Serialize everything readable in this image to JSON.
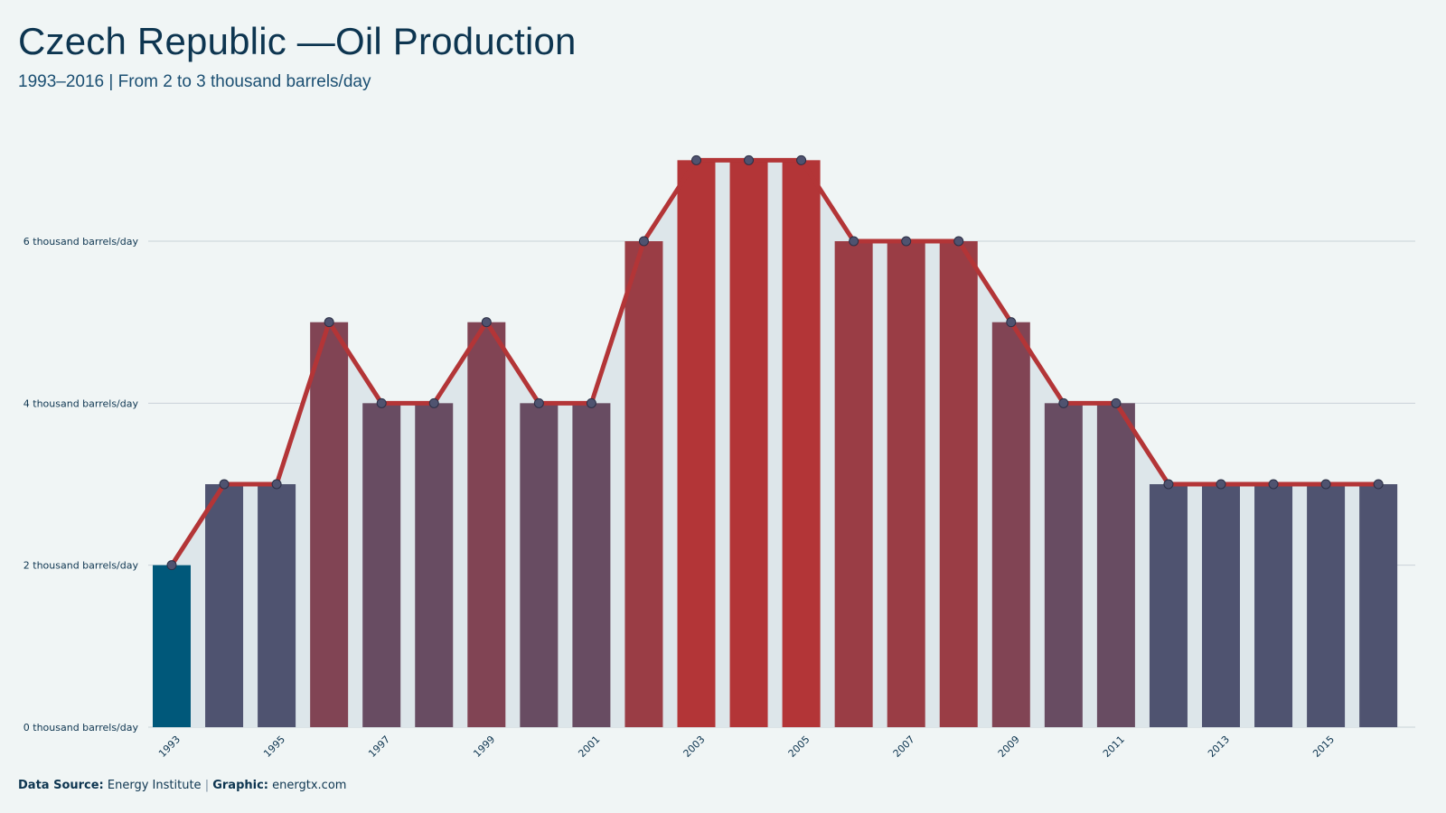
{
  "header": {
    "title": "Czech Republic —Oil Production",
    "subtitle": "1993–2016 | From 2 to 3 thousand barrels/day"
  },
  "footer": {
    "source_label": "Data Source:",
    "source_value": "Energy Institute",
    "separator": "|",
    "graphic_label": "Graphic:",
    "graphic_value": "energtx.com"
  },
  "colors": {
    "low": "#00587a",
    "mid": "#4f5370",
    "high": "#b33537",
    "line": "#b33537",
    "area": "#dde6ea",
    "marker": "#4f5370",
    "grid": "#c9d2d8"
  },
  "chart_data": {
    "type": "bar",
    "x": [
      1993,
      1994,
      1995,
      1996,
      1997,
      1998,
      1999,
      2000,
      2001,
      2002,
      2003,
      2004,
      2005,
      2006,
      2007,
      2008,
      2009,
      2010,
      2011,
      2012,
      2013,
      2014,
      2015,
      2016
    ],
    "values": [
      2,
      3,
      3,
      5,
      4,
      4,
      5,
      4,
      4,
      6,
      7,
      7,
      7,
      6,
      6,
      6,
      5,
      4,
      4,
      3,
      3,
      3,
      3,
      3
    ],
    "x_tick_labels": [
      "1993",
      "1995",
      "1997",
      "1999",
      "2001",
      "2003",
      "2005",
      "2007",
      "2009",
      "2011",
      "2013",
      "2015"
    ],
    "y_ticks": [
      0,
      2,
      4,
      6
    ],
    "y_tick_labels": [
      "0 thousand barrels/day",
      "2 thousand barrels/day",
      "4 thousand barrels/day",
      "6 thousand barrels/day"
    ],
    "ylim": [
      0,
      7.2
    ],
    "grid": true,
    "overlay": "line with markers and shaded area"
  }
}
